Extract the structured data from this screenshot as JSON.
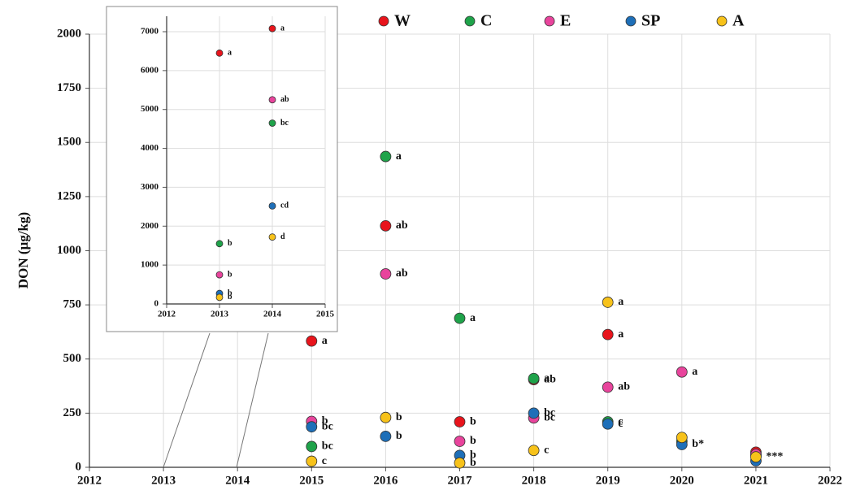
{
  "chart_data": [
    {
      "type": "scatter",
      "ylabel": "DON (µg/kg)",
      "xlim": [
        2012,
        2022
      ],
      "xticks": [
        2012,
        2013,
        2014,
        2015,
        2016,
        2017,
        2018,
        2019,
        2020,
        2021,
        2022
      ],
      "ylim": [
        0,
        2000
      ],
      "yticks": [
        0,
        250,
        500,
        750,
        1000,
        1250,
        1500,
        1750,
        2000
      ],
      "grid": true,
      "legend": "top",
      "series": [
        {
          "name": "W",
          "color": "#e8141c",
          "x": [
            2015,
            2016,
            2017,
            2018,
            2019,
            2021
          ],
          "values": [
            583,
            1115,
            210,
            405,
            613,
            70
          ],
          "point_labels": [
            "a",
            "ab",
            "b",
            "ab",
            "a",
            null
          ]
        },
        {
          "name": "C",
          "color": "#1fa34a",
          "x": [
            2015,
            2016,
            2017,
            2018,
            2019,
            2020,
            2021
          ],
          "values": [
            96,
            1435,
            688,
            410,
            210,
            120,
            55
          ],
          "point_labels": [
            "bc",
            "a",
            "a",
            "a",
            "c",
            null,
            null
          ]
        },
        {
          "name": "E",
          "color": "#e8449c",
          "x": [
            2015,
            2016,
            2017,
            2018,
            2019,
            2020,
            2021
          ],
          "values": [
            212,
            893,
            120,
            228,
            370,
            440,
            60
          ],
          "point_labels": [
            "b",
            "ab",
            "b",
            "bc",
            "ab",
            "a",
            null
          ]
        },
        {
          "name": "SP",
          "color": "#1e6fb8",
          "x": [
            2015,
            2016,
            2017,
            2018,
            2019,
            2020,
            2021
          ],
          "values": [
            187,
            143,
            55,
            250,
            200,
            105,
            30
          ],
          "point_labels": [
            "bc",
            "b",
            "b",
            "bc",
            "c",
            "b*",
            null
          ]
        },
        {
          "name": "A",
          "color": "#f7c21a",
          "x": [
            2015,
            2016,
            2017,
            2018,
            2019,
            2020,
            2021
          ],
          "values": [
            28,
            230,
            20,
            78,
            762,
            138,
            48
          ],
          "point_labels": [
            "c",
            "b",
            "b",
            "c",
            "a",
            null,
            "***"
          ]
        }
      ]
    },
    {
      "type": "scatter",
      "xlim": [
        2012,
        2015
      ],
      "xticks": [
        2012,
        2013,
        2014,
        2015
      ],
      "ylim": [
        0,
        7000
      ],
      "yticks": [
        0,
        1000,
        2000,
        3000,
        4000,
        5000,
        6000,
        7000
      ],
      "grid": true,
      "series": [
        {
          "color": "#e8141c",
          "x": [
            2013,
            2014
          ],
          "values": [
            6450,
            7080
          ],
          "point_labels": [
            "a",
            "a"
          ]
        },
        {
          "color": "#1fa34a",
          "x": [
            2013,
            2014
          ],
          "values": [
            1550,
            4650
          ],
          "point_labels": [
            "b",
            "bc"
          ]
        },
        {
          "color": "#e8449c",
          "x": [
            2013,
            2014
          ],
          "values": [
            750,
            5250
          ],
          "point_labels": [
            "b",
            "ab"
          ]
        },
        {
          "color": "#1e6fb8",
          "x": [
            2013,
            2014
          ],
          "values": [
            270,
            2520
          ],
          "point_labels": [
            "b",
            "cd"
          ]
        },
        {
          "color": "#f7c21a",
          "x": [
            2013,
            2014
          ],
          "values": [
            170,
            1720
          ],
          "point_labels": [
            "b",
            "d"
          ]
        }
      ]
    }
  ]
}
